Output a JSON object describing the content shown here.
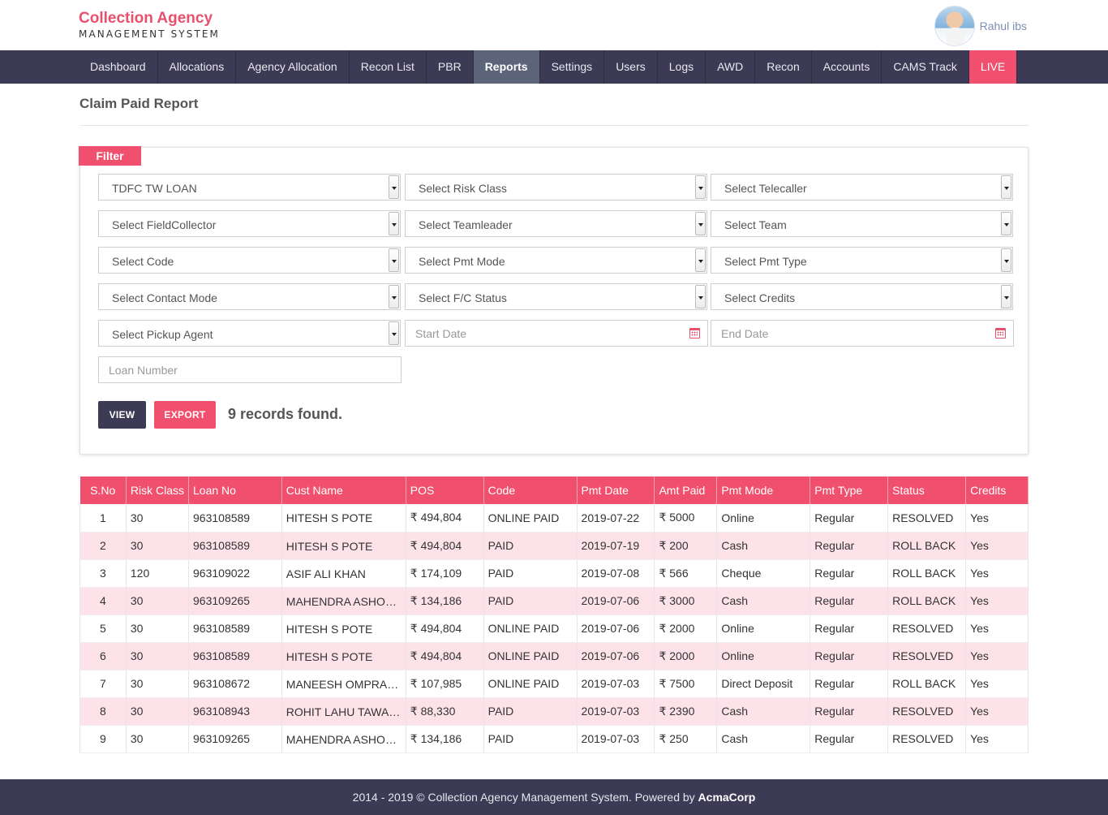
{
  "brand": {
    "title": "Collection Agency",
    "subtitle": "MANAGEMENT SYSTEM"
  },
  "user": {
    "name": "Rahul ibs"
  },
  "nav": [
    {
      "label": "Dashboard",
      "active": false
    },
    {
      "label": "Allocations",
      "active": false
    },
    {
      "label": "Agency Allocation",
      "active": false
    },
    {
      "label": "Recon List",
      "active": false
    },
    {
      "label": "PBR",
      "active": false
    },
    {
      "label": "Reports",
      "active": true
    },
    {
      "label": "Settings",
      "active": false
    },
    {
      "label": "Users",
      "active": false
    },
    {
      "label": "Logs",
      "active": false
    },
    {
      "label": "AWD",
      "active": false
    },
    {
      "label": "Recon",
      "active": false
    },
    {
      "label": "Accounts",
      "active": false
    },
    {
      "label": "CAMS Track",
      "active": false
    },
    {
      "label": "LIVE",
      "active": false,
      "highlight": true
    }
  ],
  "page": {
    "title": "Claim Paid Report"
  },
  "filter": {
    "tab_label": "Filter",
    "selects": [
      {
        "value": "TDFC TW LOAN"
      },
      {
        "value": "Select Risk Class"
      },
      {
        "value": "Select Telecaller"
      },
      {
        "value": "Select FieldCollector"
      },
      {
        "value": "Select Teamleader"
      },
      {
        "value": "Select Team"
      },
      {
        "value": "Select Code"
      },
      {
        "value": "Select Pmt Mode"
      },
      {
        "value": "Select Pmt Type"
      },
      {
        "value": "Select Contact Mode"
      },
      {
        "value": "Select F/C Status"
      },
      {
        "value": "Select Credits"
      },
      {
        "value": "Select Pickup Agent"
      }
    ],
    "start_date_placeholder": "Start Date",
    "end_date_placeholder": "End Date",
    "loan_number_placeholder": "Loan Number",
    "view_label": "VIEW",
    "export_label": "EXPORT",
    "records_text": "9 records found."
  },
  "table": {
    "headers": [
      "S.No",
      "Risk Class",
      "Loan No",
      "Cust Name",
      "POS",
      "Code",
      "Pmt Date",
      "Amt Paid",
      "Pmt Mode",
      "Pmt Type",
      "Status",
      "Credits"
    ],
    "rows": [
      [
        "1",
        "30",
        "963108589",
        "HITESH S POTE",
        "₹ 494,804",
        "ONLINE PAID",
        "2019-07-22",
        "₹ 5000",
        "Online",
        "Regular",
        "RESOLVED",
        "Yes"
      ],
      [
        "2",
        "30",
        "963108589",
        "HITESH S POTE",
        "₹ 494,804",
        "PAID",
        "2019-07-19",
        "₹ 200",
        "Cash",
        "Regular",
        "ROLL BACK",
        "Yes"
      ],
      [
        "3",
        "120",
        "963109022",
        "ASIF ALI KHAN",
        "₹ 174,109",
        "PAID",
        "2019-07-08",
        "₹ 566",
        "Cheque",
        "Regular",
        "ROLL BACK",
        "Yes"
      ],
      [
        "4",
        "30",
        "963109265",
        "MAHENDRA ASHOK...",
        "₹ 134,186",
        "PAID",
        "2019-07-06",
        "₹ 3000",
        "Cash",
        "Regular",
        "ROLL BACK",
        "Yes"
      ],
      [
        "5",
        "30",
        "963108589",
        "HITESH S POTE",
        "₹ 494,804",
        "ONLINE PAID",
        "2019-07-06",
        "₹ 2000",
        "Online",
        "Regular",
        "RESOLVED",
        "Yes"
      ],
      [
        "6",
        "30",
        "963108589",
        "HITESH S POTE",
        "₹ 494,804",
        "ONLINE PAID",
        "2019-07-06",
        "₹ 2000",
        "Online",
        "Regular",
        "RESOLVED",
        "Yes"
      ],
      [
        "7",
        "30",
        "963108672",
        "MANEESH OMPRAK...",
        "₹ 107,985",
        "ONLINE PAID",
        "2019-07-03",
        "₹ 7500",
        "Direct Deposit",
        "Regular",
        "ROLL BACK",
        "Yes"
      ],
      [
        "8",
        "30",
        "963108943",
        "ROHIT LAHU TAWARE",
        "₹ 88,330",
        "PAID",
        "2019-07-03",
        "₹ 2390",
        "Cash",
        "Regular",
        "RESOLVED",
        "Yes"
      ],
      [
        "9",
        "30",
        "963109265",
        "MAHENDRA ASHOK...",
        "₹ 134,186",
        "PAID",
        "2019-07-03",
        "₹ 250",
        "Cash",
        "Regular",
        "RESOLVED",
        "Yes"
      ]
    ]
  },
  "footer": {
    "text": "2014 - 2019 © Collection Agency Management System. Powered by",
    "company": "AcmaCorp"
  },
  "colors": {
    "brand_pink": "#f0506e",
    "nav_dark": "#3c3a55",
    "active_tab": "#5b6479",
    "row_alt": "#fde3e9"
  }
}
